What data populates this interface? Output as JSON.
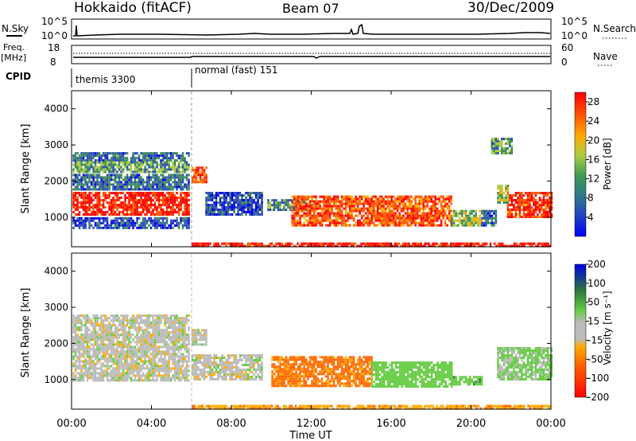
{
  "header": {
    "station": "Hokkaido (fitACF)",
    "beam": "Beam 07",
    "date": "30/Dec/2009"
  },
  "status_panel": {
    "nsky_label": "N.Sky",
    "nsky_ticks": [
      "10^5",
      "10^0"
    ],
    "nsearch_label": "N.Search",
    "nsearch_ticks": [
      "10^5",
      "10^0"
    ],
    "freq_label": "Freq.",
    "freq_unit": "[MHz]",
    "freq_ticks": [
      "18",
      "8"
    ],
    "nave_label": "Nave",
    "nave_ticks": [
      "60",
      "0"
    ],
    "cpid_label": "CPID",
    "cpid_segments": [
      {
        "name": "themis 3300",
        "start_h": 0,
        "end_h": 6.0
      },
      {
        "name": "normal (fast) 151",
        "start_h": 6.0,
        "end_h": 24
      }
    ]
  },
  "chart_data": [
    {
      "type": "heatmap",
      "name": "power",
      "ylabel": "Slant Range [km]",
      "ylim": [
        180,
        4500
      ],
      "y_ticks": [
        "4000",
        "3000",
        "2000",
        "1000"
      ],
      "x_unit": "hours UT",
      "xlim": [
        0,
        24
      ],
      "colorbar_label": "Power [dB]",
      "colorbar_ticks": [
        "28",
        "24",
        "20",
        "16",
        "12",
        "8",
        "4"
      ],
      "colorbar_range": [
        0,
        30
      ],
      "colors": [
        "#0000e6",
        "#2a4cb4",
        "#3c8a5a",
        "#aacc44",
        "#ffaa00",
        "#ff5500",
        "#ff0000"
      ],
      "regions": [
        {
          "x": [
            0.05,
            5.9
          ],
          "y": [
            2600,
            2800
          ],
          "value": 8
        },
        {
          "x": [
            0.05,
            5.9
          ],
          "y": [
            2250,
            2550
          ],
          "value": 12
        },
        {
          "x": [
            0.05,
            5.9
          ],
          "y": [
            1800,
            2200
          ],
          "value": 8
        },
        {
          "x": [
            0.05,
            5.9
          ],
          "y": [
            1050,
            1700
          ],
          "value": 27
        },
        {
          "x": [
            0.05,
            5.9
          ],
          "y": [
            700,
            1000
          ],
          "value": 6
        },
        {
          "x": [
            6.0,
            6.7
          ],
          "y": [
            2000,
            2400
          ],
          "value": 24
        },
        {
          "x": [
            6.7,
            9.5
          ],
          "y": [
            1100,
            1700
          ],
          "value": 6
        },
        {
          "x": [
            6.0,
            24
          ],
          "y": [
            200,
            300
          ],
          "value": 28
        },
        {
          "x": [
            9.8,
            12.0
          ],
          "y": [
            1200,
            1500
          ],
          "value": 10
        },
        {
          "x": [
            11.0,
            19.0
          ],
          "y": [
            800,
            1600
          ],
          "value": 24
        },
        {
          "x": [
            19.0,
            20.5
          ],
          "y": [
            800,
            1200
          ],
          "value": 14
        },
        {
          "x": [
            20.5,
            21.2
          ],
          "y": [
            800,
            1200
          ],
          "value": 8
        },
        {
          "x": [
            21.8,
            24
          ],
          "y": [
            1000,
            1700
          ],
          "value": 26
        },
        {
          "x": [
            21.3,
            21.8
          ],
          "y": [
            1400,
            1900
          ],
          "value": 14
        },
        {
          "x": [
            21.0,
            22.0
          ],
          "y": [
            2800,
            3200
          ],
          "value": 12
        }
      ]
    },
    {
      "type": "heatmap",
      "name": "velocity",
      "ylabel": "Slant Range [km]",
      "ylim": [
        180,
        4500
      ],
      "y_ticks": [
        "4000",
        "3000",
        "2000",
        "1000"
      ],
      "x_ticks": [
        "00:00",
        "04:00",
        "08:00",
        "12:00",
        "16:00",
        "20:00",
        "00:00"
      ],
      "x_values": [
        0,
        4,
        8,
        12,
        16,
        20,
        24
      ],
      "xlabel": "Time UT",
      "xlim": [
        0,
        24
      ],
      "colorbar_label": "Velocity [m s⁻¹]",
      "colorbar_ticks": [
        "200",
        "100",
        "50",
        "15",
        "-15",
        "-50",
        "-100",
        "-200"
      ],
      "colors": [
        "#0000e6",
        "#2a7a3a",
        "#66cc44",
        "#bbbbbb",
        "#ffaa00",
        "#ff6600",
        "#ff3300",
        "#ff0000"
      ],
      "regions": [
        {
          "x": [
            0.05,
            5.9
          ],
          "y": [
            2200,
            2800
          ],
          "value": 0
        },
        {
          "x": [
            0.05,
            5.9
          ],
          "y": [
            1000,
            2200
          ],
          "value": 0
        },
        {
          "x": [
            6.0,
            9.5
          ],
          "y": [
            1000,
            1700
          ],
          "value": 0
        },
        {
          "x": [
            6.0,
            6.7
          ],
          "y": [
            2000,
            2400
          ],
          "value": 0
        },
        {
          "x": [
            10.0,
            15.0
          ],
          "y": [
            800,
            1650
          ],
          "value": -60
        },
        {
          "x": [
            15.0,
            19.0
          ],
          "y": [
            800,
            1500
          ],
          "value": 40
        },
        {
          "x": [
            19.0,
            20.5
          ],
          "y": [
            850,
            1100
          ],
          "value": 60
        },
        {
          "x": [
            21.3,
            24
          ],
          "y": [
            1000,
            1900
          ],
          "value": 20
        },
        {
          "x": [
            6.0,
            24
          ],
          "y": [
            200,
            300
          ],
          "value": -40
        }
      ]
    }
  ]
}
